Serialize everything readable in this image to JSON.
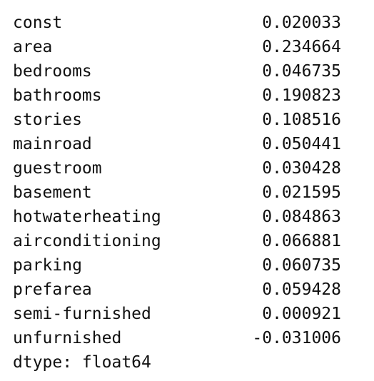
{
  "series": [
    {
      "name": "const",
      "value": "0.020033"
    },
    {
      "name": "area",
      "value": "0.234664"
    },
    {
      "name": "bedrooms",
      "value": "0.046735"
    },
    {
      "name": "bathrooms",
      "value": "0.190823"
    },
    {
      "name": "stories",
      "value": "0.108516"
    },
    {
      "name": "mainroad",
      "value": "0.050441"
    },
    {
      "name": "guestroom",
      "value": "0.030428"
    },
    {
      "name": "basement",
      "value": "0.021595"
    },
    {
      "name": "hotwaterheating",
      "value": "0.084863"
    },
    {
      "name": "airconditioning",
      "value": "0.066881"
    },
    {
      "name": "parking",
      "value": "0.060735"
    },
    {
      "name": "prefarea",
      "value": "0.059428"
    },
    {
      "name": "semi-furnished",
      "value": "0.000921"
    },
    {
      "name": "unfurnished",
      "value": "-0.031006"
    }
  ],
  "dtype_text": "dtype: float64"
}
